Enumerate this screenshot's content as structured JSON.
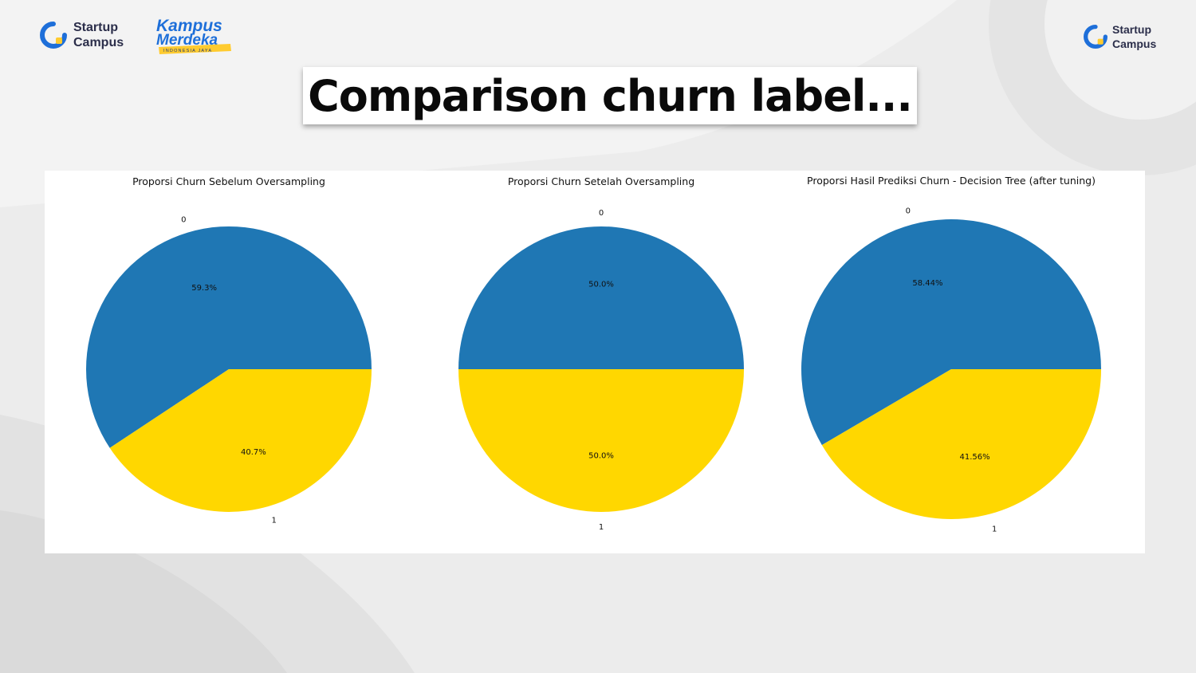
{
  "header": {
    "brand_left": {
      "line1": "Startup",
      "line2": "Campus"
    },
    "brand_right": {
      "line1": "Startup",
      "line2": "Campus"
    },
    "kampus_merdeka": {
      "line1": "Kampus",
      "line2": "Merdeka",
      "tagline": "INDONESIA JAYA"
    },
    "colors": {
      "brand_navy": "#2b2e4a",
      "brand_blue": "#1e6fd9",
      "accent_yellow": "#ffcb2f"
    }
  },
  "slide": {
    "title": "Comparison churn label..."
  },
  "chart_data": [
    {
      "type": "pie",
      "title": "Proporsi Churn Sebelum Oversampling",
      "categories": [
        "0",
        "1"
      ],
      "values": [
        59.3,
        40.7
      ],
      "pct_labels": [
        "59.3%",
        "40.7%"
      ],
      "colors": [
        "#1f77b4",
        "#ffd700"
      ]
    },
    {
      "type": "pie",
      "title": "Proporsi Churn Setelah Oversampling",
      "categories": [
        "0",
        "1"
      ],
      "values": [
        50.0,
        50.0
      ],
      "pct_labels": [
        "50.0%",
        "50.0%"
      ],
      "colors": [
        "#1f77b4",
        "#ffd700"
      ]
    },
    {
      "type": "pie",
      "title": "Proporsi Hasil Prediksi Churn - Decision Tree (after tuning)",
      "categories": [
        "0",
        "1"
      ],
      "values": [
        58.44,
        41.56
      ],
      "pct_labels": [
        "58.44%",
        "41.56%"
      ],
      "colors": [
        "#1f77b4",
        "#ffd700"
      ]
    }
  ]
}
